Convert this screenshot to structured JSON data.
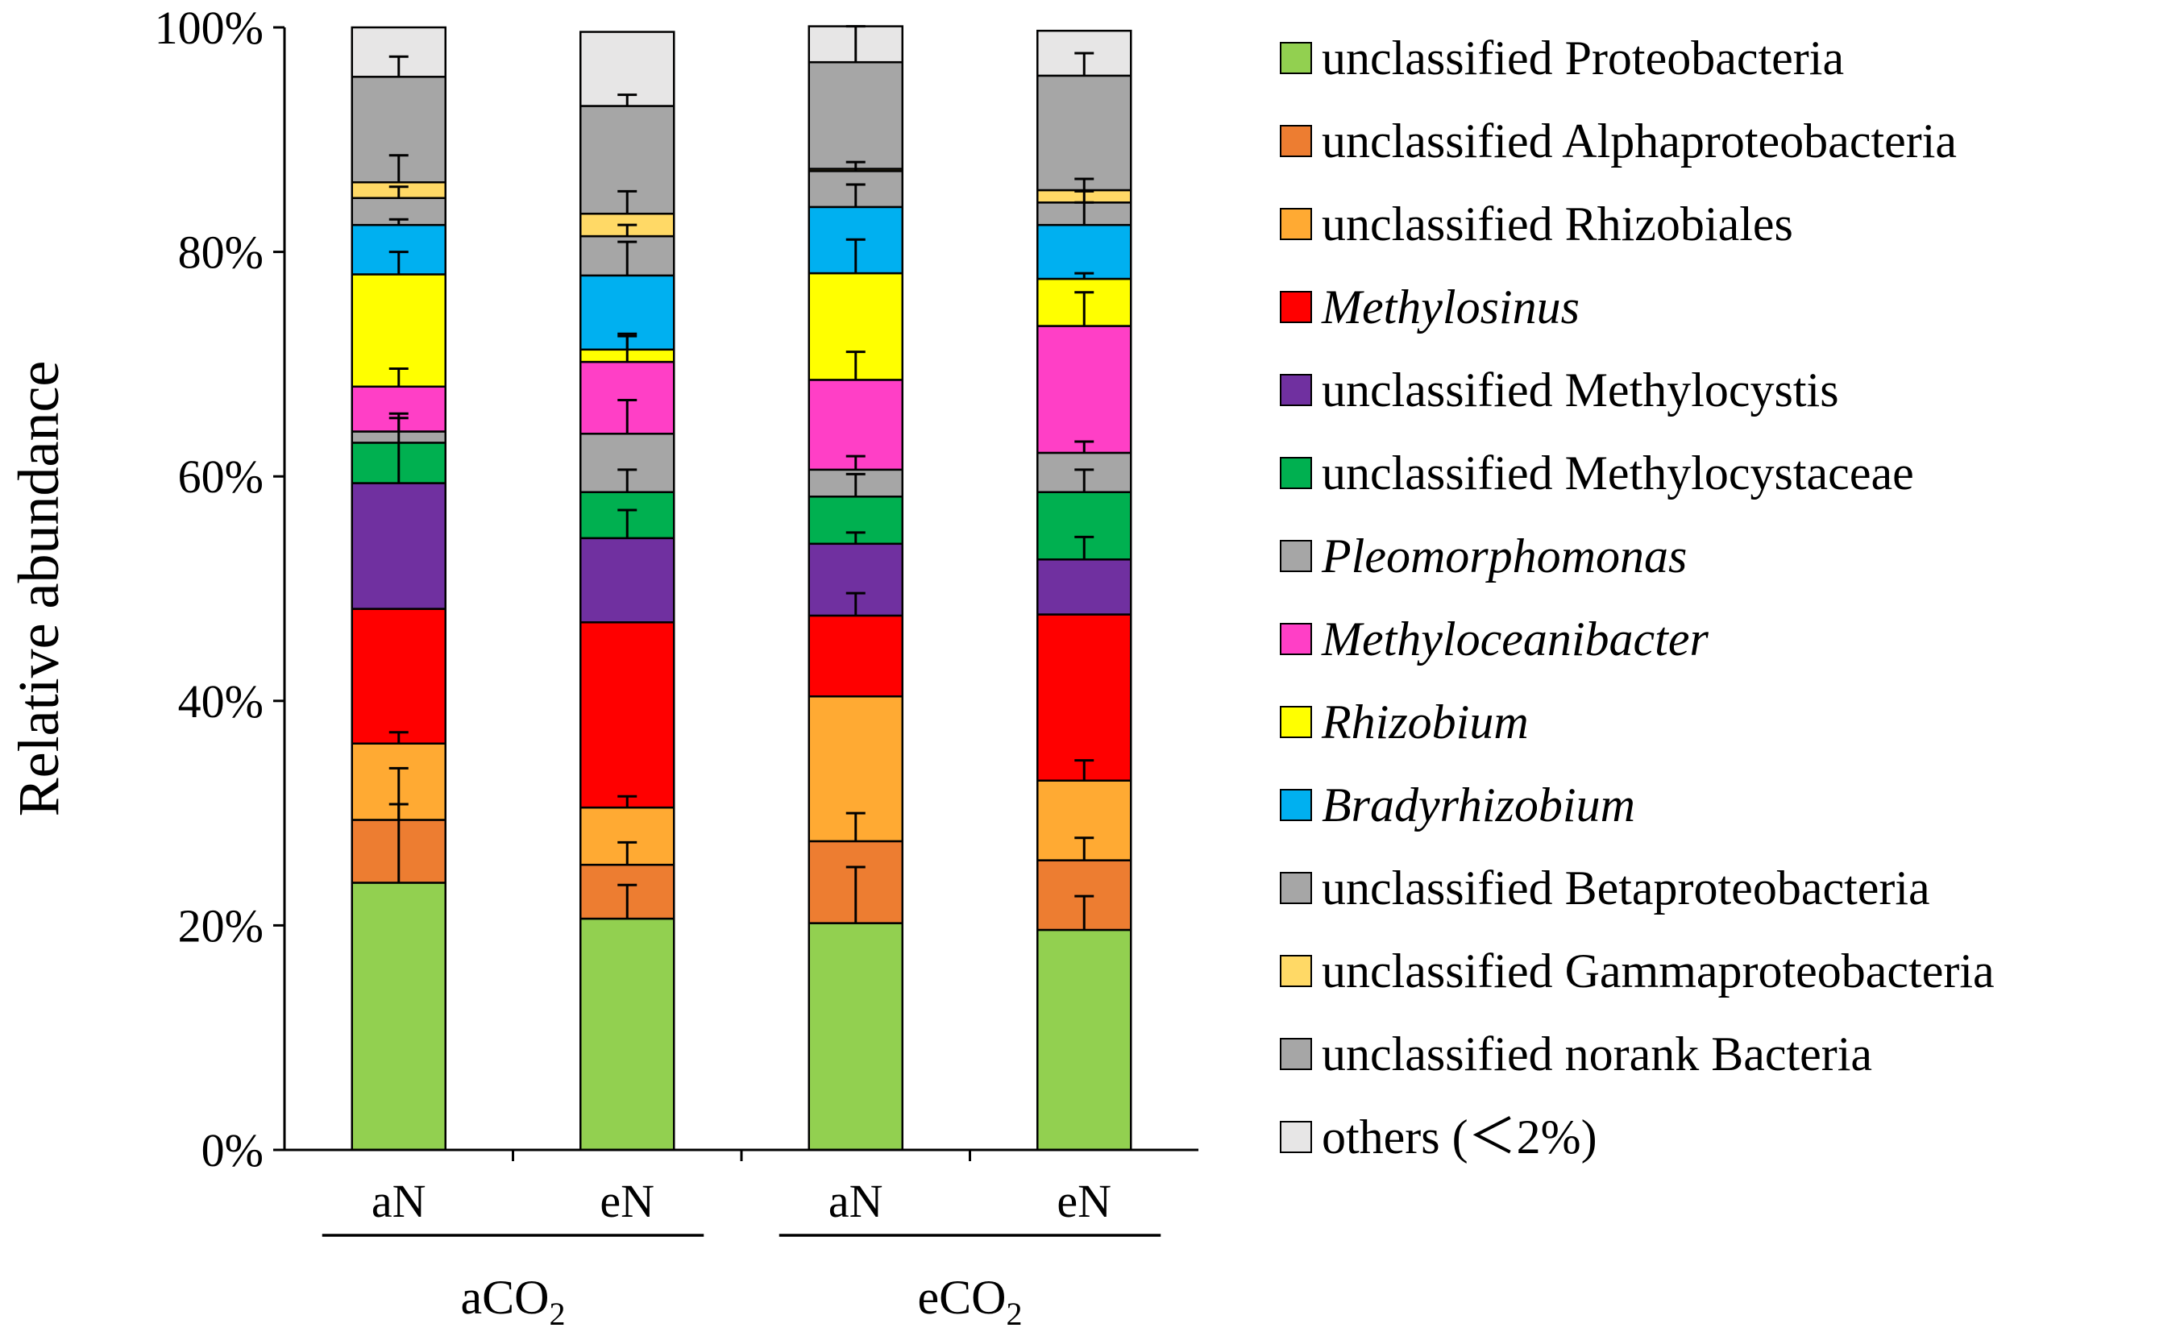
{
  "chart_data": {
    "type": "bar",
    "stacked": true,
    "ylabel": "Relative abundance",
    "yticks": [
      "0%",
      "20%",
      "40%",
      "60%",
      "80%",
      "100%"
    ],
    "ylim": [
      0,
      100
    ],
    "categories": [
      "aN",
      "eN",
      "aN",
      "eN"
    ],
    "groups": [
      {
        "label": "aCO",
        "sub": "2",
        "members": [
          0,
          1
        ]
      },
      {
        "label": "eCO",
        "sub": "2",
        "members": [
          2,
          3
        ]
      }
    ],
    "series": [
      {
        "name": "unclassified Proteobacteria",
        "italic": false,
        "color": "#92D050",
        "values": [
          23.8,
          20.6,
          20.2,
          19.6
        ],
        "err": [
          7.0,
          3.0,
          5.0,
          3.0
        ]
      },
      {
        "name": "unclassified Alphaproteobacteria",
        "italic": false,
        "color": "#ED7D31",
        "values": [
          5.6,
          4.8,
          7.3,
          6.2
        ],
        "err": [
          4.6,
          2.0,
          2.5,
          2.0
        ]
      },
      {
        "name": "unclassified Rhizobiales",
        "italic": false,
        "color": "#FFAA33",
        "values": [
          6.8,
          5.1,
          12.9,
          7.1
        ],
        "err": [
          1.0,
          1.0,
          0,
          1.8
        ]
      },
      {
        "name": "Methylosinus",
        "italic": true,
        "color": "#FF0000",
        "values": [
          12.0,
          16.5,
          7.2,
          14.8
        ],
        "err": [
          0,
          0,
          2.0,
          0
        ]
      },
      {
        "name": "unclassified Methylocystis",
        "italic": false,
        "color": "#7030A0",
        "values": [
          11.2,
          7.5,
          6.4,
          4.9
        ],
        "err": [
          5.8,
          2.5,
          1.0,
          2.0
        ]
      },
      {
        "name": "unclassified Methylocystaceae",
        "italic": false,
        "color": "#00B050",
        "values": [
          3.6,
          4.1,
          4.2,
          6.0
        ],
        "err": [
          0,
          2.0,
          2.0,
          2.0
        ]
      },
      {
        "name": "Pleomorphomonas",
        "italic": true,
        "color": "#A6A6A6",
        "values": [
          1.0,
          5.2,
          2.4,
          3.5
        ],
        "err": [
          1.6,
          3.0,
          1.2,
          1.0
        ]
      },
      {
        "name": "Methyloceanibacter",
        "italic": true,
        "color": "#FF3FC6",
        "values": [
          4.0,
          6.4,
          8.0,
          11.3
        ],
        "err": [
          1.6,
          2.5,
          2.5,
          3.0
        ]
      },
      {
        "name": "Rhizobium",
        "italic": true,
        "color": "#FFFF00",
        "values": [
          10.0,
          1.1,
          9.5,
          4.2
        ],
        "err": [
          2.0,
          1.2,
          3.0,
          0.5
        ]
      },
      {
        "name": "Bradyrhizobium",
        "italic": true,
        "color": "#00B0F0",
        "values": [
          4.4,
          6.6,
          5.9,
          4.8
        ],
        "err": [
          0.5,
          3.0,
          2.0,
          2.0
        ]
      },
      {
        "name": "unclassified Betaproteobacteria",
        "italic": false,
        "color": "#A6A6A6",
        "values": [
          2.4,
          3.5,
          3.2,
          2.0
        ],
        "err": [
          1.0,
          1.0,
          0.8,
          1.0
        ]
      },
      {
        "name": "unclassified Gammaproteobacteria",
        "italic": false,
        "color": "#FFD966",
        "values": [
          1.4,
          2.0,
          0.2,
          1.1
        ],
        "err": [
          2.4,
          2.0,
          0,
          1.0
        ]
      },
      {
        "name": "unclassified norank Bacteria",
        "italic": false,
        "color": "#A6A6A6",
        "values": [
          9.4,
          9.6,
          9.5,
          10.2
        ],
        "err": [
          1.8,
          1.0,
          3.2,
          2.0
        ]
      },
      {
        "name": "others (＜2%)",
        "italic": false,
        "color": "#E7E6E6",
        "values": [
          4.4,
          6.6,
          3.2,
          4.0
        ],
        "err": [
          0,
          0,
          0,
          0
        ]
      }
    ]
  }
}
